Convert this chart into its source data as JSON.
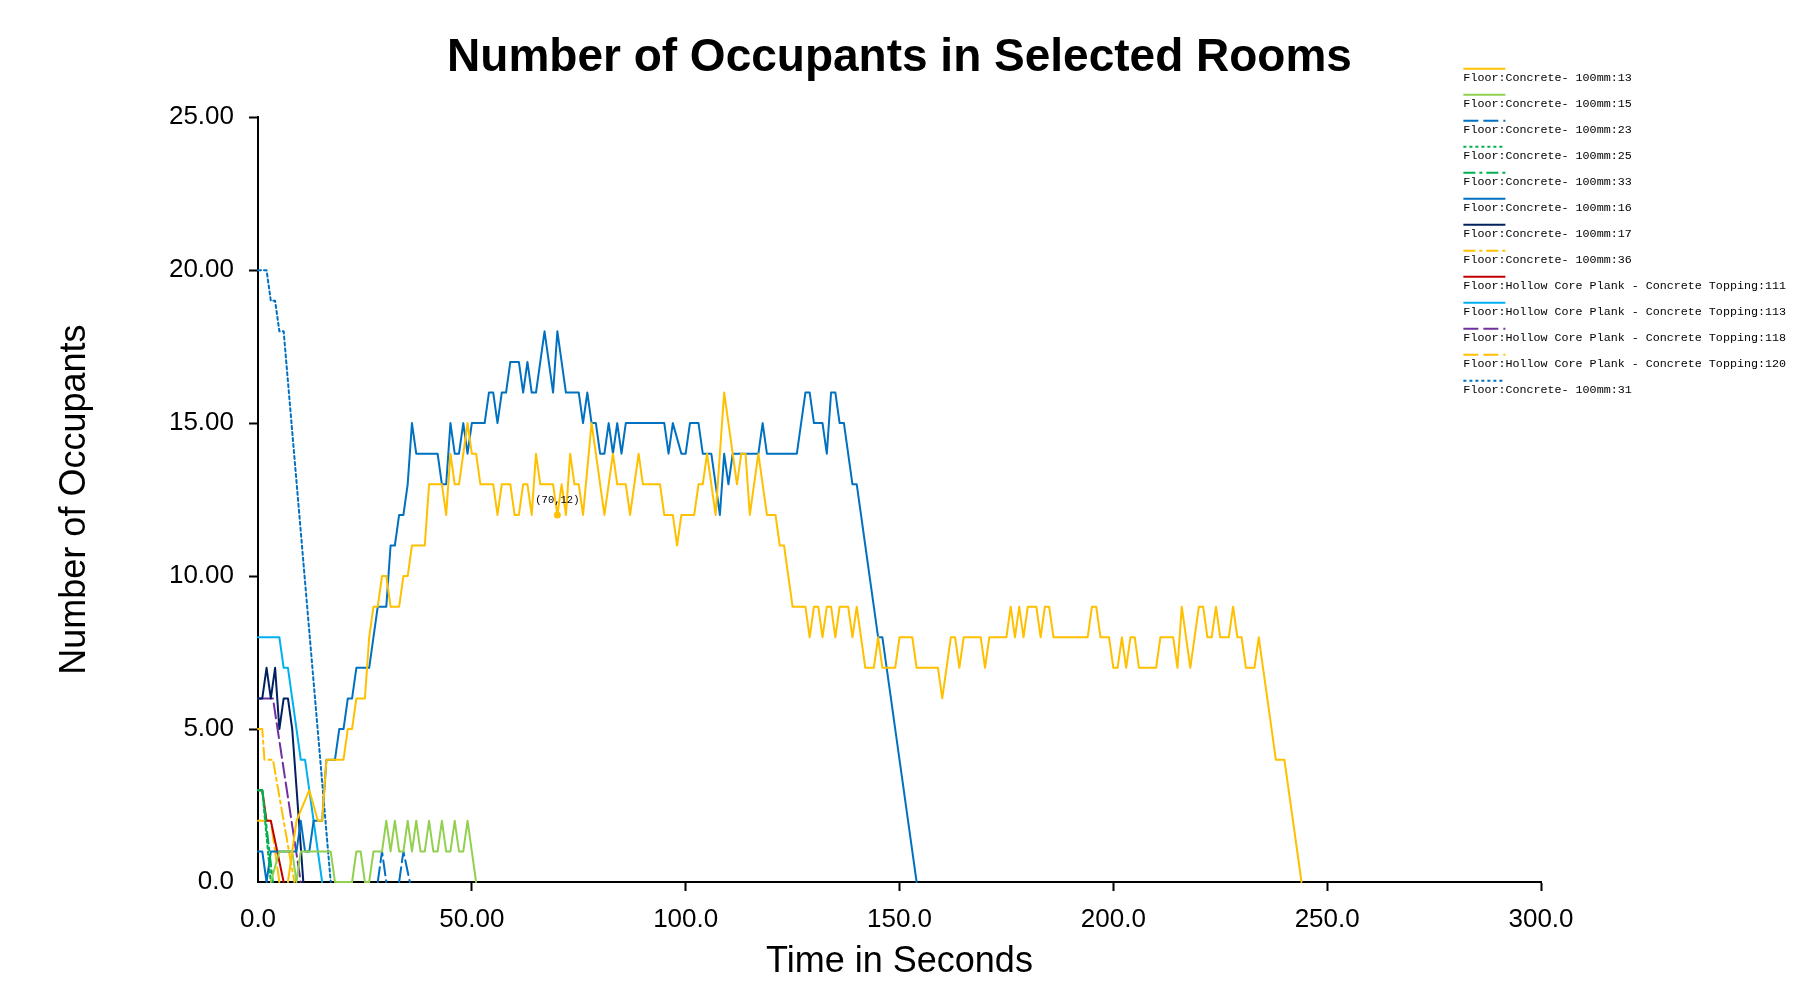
{
  "chart_data": {
    "type": "line",
    "title": "Number of Occupants in Selected Rooms",
    "xlabel": "Time in Seconds",
    "ylabel": "Number of Occupants",
    "xlim": [
      0,
      300
    ],
    "xticks": [
      {
        "value": 0,
        "label": "0.0"
      },
      {
        "value": 50,
        "label": "50.00"
      },
      {
        "value": 100,
        "label": "100.0"
      },
      {
        "value": 150,
        "label": "150.0"
      },
      {
        "value": 200,
        "label": "200.0"
      },
      {
        "value": 250,
        "label": "250.0"
      },
      {
        "value": 300,
        "label": "300.0"
      }
    ],
    "ylim": [
      0,
      25
    ],
    "yticks": [
      {
        "value": 0,
        "label": "0.0"
      },
      {
        "value": 5,
        "label": "5.00"
      },
      {
        "value": 10,
        "label": "10.00"
      },
      {
        "value": 15,
        "label": "15.00"
      },
      {
        "value": 20,
        "label": "20.00"
      },
      {
        "value": 25,
        "label": "25.00"
      }
    ],
    "legend": "top right",
    "annotations": [
      {
        "text": "(70,12)",
        "x": 70,
        "y": 12
      }
    ],
    "series": [
      {
        "name": "Floor:Concrete- 100mm:13",
        "color": "#ffc000",
        "line_style": "solid",
        "x": [
          7,
          9,
          12,
          14,
          15,
          16,
          20,
          21,
          22,
          23,
          25,
          26,
          27,
          28,
          29,
          30,
          31,
          33,
          34,
          35,
          36,
          39,
          40,
          43,
          44,
          45,
          46,
          47,
          49,
          50,
          51,
          52,
          55,
          56,
          57,
          59,
          60,
          61,
          62,
          63,
          64,
          65,
          66,
          69,
          70,
          71,
          72,
          73,
          74,
          75,
          76,
          78,
          79,
          81,
          83,
          84,
          86,
          87,
          89,
          90,
          94,
          95,
          97,
          98,
          99,
          102,
          103,
          104,
          105,
          107,
          109,
          111,
          112,
          113,
          114,
          115,
          117,
          119,
          121,
          122,
          123,
          125,
          128,
          129,
          130,
          131,
          132,
          133,
          134,
          135,
          136,
          138,
          139,
          140,
          142,
          144,
          145,
          146,
          149,
          150,
          153,
          154,
          159,
          160,
          162,
          163,
          164,
          165,
          169,
          170,
          171,
          175,
          176,
          177,
          178,
          179,
          180,
          182,
          183,
          184,
          185,
          186,
          194,
          195,
          196,
          197,
          199,
          200,
          201,
          202,
          203,
          204,
          205,
          206,
          210,
          211,
          214,
          215,
          216,
          218,
          220,
          221,
          222,
          223,
          224,
          225,
          227,
          228,
          229,
          230,
          231,
          233,
          234,
          236,
          238,
          240,
          244
        ],
        "values": [
          0,
          2,
          3,
          2,
          2,
          4,
          4,
          5,
          5,
          6,
          6,
          8,
          9,
          9,
          10,
          10,
          9,
          9,
          10,
          10,
          11,
          11,
          13,
          13,
          12,
          14,
          13,
          13,
          15,
          14,
          14,
          13,
          13,
          12,
          13,
          13,
          12,
          12,
          13,
          13,
          12,
          14,
          13,
          13,
          12,
          13,
          12,
          14,
          13,
          13,
          12,
          15,
          14,
          12,
          14,
          13,
          13,
          12,
          14,
          13,
          13,
          12,
          12,
          11,
          12,
          12,
          13,
          13,
          14,
          12,
          16,
          14,
          13,
          14,
          14,
          12,
          14,
          12,
          12,
          11,
          11,
          9,
          9,
          8,
          9,
          9,
          8,
          9,
          9,
          8,
          9,
          9,
          8,
          9,
          7,
          7,
          8,
          7,
          7,
          8,
          8,
          7,
          7,
          6,
          8,
          8,
          7,
          8,
          8,
          7,
          8,
          8,
          9,
          8,
          9,
          8,
          9,
          9,
          8,
          9,
          9,
          8,
          8,
          9,
          9,
          8,
          8,
          7,
          7,
          8,
          7,
          8,
          8,
          7,
          7,
          8,
          8,
          7,
          9,
          7,
          9,
          9,
          8,
          8,
          9,
          8,
          8,
          9,
          8,
          8,
          7,
          7,
          8,
          6,
          4,
          4,
          0
        ]
      },
      {
        "name": "Floor:Concrete- 100mm:15",
        "color": "#92d050",
        "line_style": "solid",
        "x": [
          3,
          5,
          8,
          9,
          10,
          17,
          18,
          22,
          23,
          24,
          25,
          26,
          27,
          29,
          30,
          31,
          32,
          33,
          34,
          35,
          36,
          37,
          38,
          39,
          40,
          41,
          42,
          43,
          44,
          45,
          46,
          47,
          48,
          49,
          51
        ],
        "values": [
          0,
          1,
          1,
          0,
          1,
          1,
          0,
          0,
          1,
          1,
          0,
          0,
          1,
          1,
          2,
          1,
          2,
          1,
          1,
          2,
          1,
          2,
          1,
          1,
          2,
          1,
          1,
          2,
          1,
          1,
          2,
          1,
          1,
          2,
          0
        ]
      },
      {
        "name": "Floor:Concrete- 100mm:23",
        "color": "#0070c0",
        "line_style": "dashed",
        "x": [
          28,
          29,
          30,
          31,
          33,
          34,
          35.5
        ],
        "values": [
          0,
          1,
          0,
          null,
          0,
          1,
          0
        ]
      },
      {
        "name": "Floor:Concrete- 100mm:25",
        "color": "#00b050",
        "line_style": "dotted",
        "x": [
          0,
          1,
          3
        ],
        "values": [
          3,
          3,
          0
        ]
      },
      {
        "name": "Floor:Concrete- 100mm:33",
        "color": "#00b050",
        "line_style": "dashdot",
        "x": [
          0,
          1,
          3.5
        ],
        "values": [
          3,
          3,
          0
        ]
      },
      {
        "name": "Floor:Concrete- 100mm:16",
        "color": "#0070c0",
        "line_style": "solid",
        "x": [
          0,
          1,
          2,
          3,
          9,
          10,
          11,
          12,
          13,
          15,
          16,
          18,
          19,
          20,
          21,
          22,
          23,
          26,
          28,
          30,
          31,
          32,
          33,
          34,
          35,
          36,
          37,
          42,
          43,
          44,
          45,
          46,
          47,
          48,
          49,
          50,
          53,
          54,
          55,
          56,
          57,
          58,
          59,
          61,
          62,
          63,
          64,
          65,
          67,
          69,
          70,
          72,
          75,
          76,
          77,
          78,
          79,
          80,
          81,
          82,
          83,
          84,
          85,
          86,
          95,
          96,
          97,
          99,
          100,
          101,
          103,
          104,
          106,
          108,
          109,
          110,
          111,
          117,
          118,
          119,
          126,
          128,
          129,
          130,
          132,
          133,
          134,
          135,
          136,
          137,
          139,
          140,
          141,
          142,
          143,
          144,
          145,
          146,
          147,
          148,
          149,
          150,
          151,
          152,
          153,
          154
        ],
        "values": [
          1,
          1,
          0,
          1,
          1,
          2,
          1,
          1,
          2,
          2,
          4,
          4,
          5,
          5,
          6,
          6,
          7,
          7,
          9,
          9,
          11,
          11,
          12,
          12,
          13,
          15,
          14,
          14,
          13,
          13,
          15,
          14,
          14,
          15,
          14,
          15,
          15,
          16,
          16,
          15,
          16,
          16,
          17,
          17,
          16,
          17,
          16,
          16,
          18,
          16,
          18,
          16,
          16,
          15,
          16,
          15,
          15,
          14,
          14,
          15,
          14,
          15,
          14,
          15,
          15,
          14,
          15,
          14,
          14,
          15,
          15,
          14,
          14,
          12,
          14,
          13,
          14,
          14,
          15,
          14,
          14,
          16,
          16,
          15,
          15,
          14,
          16,
          16,
          15,
          15,
          13,
          13,
          12,
          11,
          10,
          9,
          8,
          8,
          7,
          6,
          5,
          4,
          3,
          2,
          1,
          0
        ]
      },
      {
        "name": "Floor:Concrete- 100mm:17",
        "color": "#002060",
        "line_style": "solid",
        "x": [
          0,
          1,
          2,
          3,
          4,
          5,
          6,
          7,
          8,
          10.6
        ],
        "values": [
          6,
          6,
          7,
          6,
          7,
          5,
          6,
          6,
          5,
          0
        ]
      },
      {
        "name": "Floor:Concrete- 100mm:36",
        "color": "#ffc000",
        "line_style": "dashdot",
        "x": [
          0,
          1,
          1.5,
          3.5,
          8.5
        ],
        "values": [
          5,
          5,
          4,
          4,
          0
        ]
      },
      {
        "name": "Floor:Hollow Core Plank - Concrete Topping:111",
        "color": "#c00000",
        "line_style": "solid",
        "x": [
          0,
          1,
          2,
          3,
          6
        ],
        "values": [
          3,
          3,
          2,
          2,
          0
        ]
      },
      {
        "name": "Floor:Hollow Core Plank - Concrete Topping:113",
        "color": "#00b0f0",
        "line_style": "solid",
        "x": [
          0,
          5,
          6,
          7,
          10,
          11,
          15
        ],
        "values": [
          8,
          8,
          7,
          7,
          4,
          4,
          0
        ]
      },
      {
        "name": "Floor:Hollow Core Plank - Concrete Topping:118",
        "color": "#7030a0",
        "line_style": "dashed",
        "x": [
          0,
          3.5,
          10
        ],
        "values": [
          6,
          6,
          0
        ]
      },
      {
        "name": "Floor:Hollow Core Plank - Concrete Topping:120",
        "color": "#ffc000",
        "line_style": "dashed",
        "x": [
          0,
          3,
          5
        ],
        "values": [
          2,
          2,
          0
        ]
      },
      {
        "name": "Floor:Concrete- 100mm:31",
        "color": "#0070c0",
        "line_style": "dotted",
        "x": [
          0,
          2,
          3,
          4,
          5,
          6,
          17
        ],
        "values": [
          20,
          20,
          19,
          19,
          18,
          18,
          0
        ]
      }
    ]
  }
}
